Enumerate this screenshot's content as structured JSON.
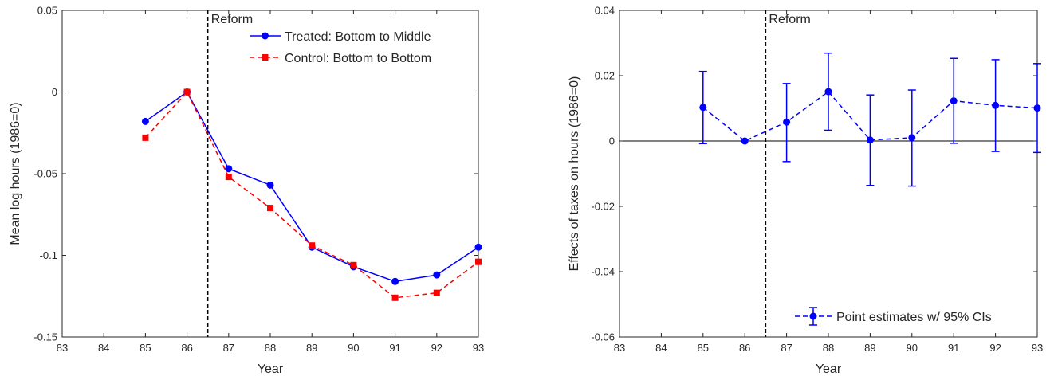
{
  "chart_data": [
    {
      "type": "line",
      "title": "",
      "xlabel": "Year",
      "ylabel": "Mean log hours (1986=0)",
      "xlim": [
        83,
        93
      ],
      "ylim": [
        -0.15,
        0.05
      ],
      "xticks": [
        83,
        84,
        85,
        86,
        87,
        88,
        89,
        90,
        91,
        92,
        93
      ],
      "xtick_labels": [
        "83",
        "84",
        "85",
        "86",
        "87",
        "88",
        "89",
        "90",
        "91",
        "92",
        "93"
      ],
      "yticks": [
        -0.15,
        -0.1,
        -0.05,
        0,
        0.05
      ],
      "ytick_labels": [
        "-0.15",
        "-0.1",
        "-0.05",
        "0",
        "0.05"
      ],
      "grid": false,
      "legend_position": "top-right",
      "vline": {
        "x": 86.5,
        "label": "Reform"
      },
      "series": [
        {
          "name": "Treated: Bottom to Middle",
          "color": "#0000ff",
          "style": "solid",
          "marker": "circle",
          "x": [
            85,
            86,
            87,
            88,
            89,
            90,
            91,
            92,
            93
          ],
          "y": [
            -0.018,
            0.0,
            -0.047,
            -0.057,
            -0.095,
            -0.107,
            -0.116,
            -0.112,
            -0.095
          ]
        },
        {
          "name": "Control: Bottom to Bottom",
          "color": "#ff0000",
          "style": "dashed",
          "marker": "square",
          "x": [
            85,
            86,
            87,
            88,
            89,
            90,
            91,
            92,
            93
          ],
          "y": [
            -0.028,
            0.0,
            -0.052,
            -0.071,
            -0.094,
            -0.106,
            -0.126,
            -0.123,
            -0.104
          ]
        }
      ]
    },
    {
      "type": "line",
      "title": "",
      "xlabel": "Year",
      "ylabel": "Effects of taxes on hours (1986=0)",
      "xlim": [
        83,
        93
      ],
      "ylim": [
        -0.06,
        0.04
      ],
      "xticks": [
        83,
        84,
        85,
        86,
        87,
        88,
        89,
        90,
        91,
        92,
        93
      ],
      "xtick_labels": [
        "83",
        "84",
        "85",
        "86",
        "87",
        "88",
        "89",
        "90",
        "91",
        "92",
        "93"
      ],
      "yticks": [
        -0.06,
        -0.04,
        -0.02,
        0,
        0.02,
        0.04
      ],
      "ytick_labels": [
        "-0.06",
        "-0.04",
        "-0.02",
        "0",
        "0.02",
        "0.04"
      ],
      "grid": false,
      "legend_position": "bottom-right",
      "zero_line": true,
      "vline": {
        "x": 86.5,
        "label": "Reform"
      },
      "series": [
        {
          "name": "Point estimates w/ 95% CIs",
          "color": "#0000ff",
          "style": "dashed",
          "marker": "circle",
          "x": [
            85,
            86,
            87,
            88,
            89,
            90,
            91,
            92,
            93
          ],
          "y": [
            0.0103,
            0.0,
            0.0058,
            0.0151,
            0.0003,
            0.001,
            0.0123,
            0.0109,
            0.0101
          ],
          "ci_low": [
            -0.0008,
            0.0,
            -0.0063,
            0.0033,
            -0.0136,
            -0.0138,
            -0.0007,
            -0.0032,
            -0.0035
          ],
          "ci_high": [
            0.0213,
            0.0,
            0.0176,
            0.0269,
            0.0141,
            0.0156,
            0.0253,
            0.0249,
            0.0237
          ]
        }
      ]
    }
  ]
}
